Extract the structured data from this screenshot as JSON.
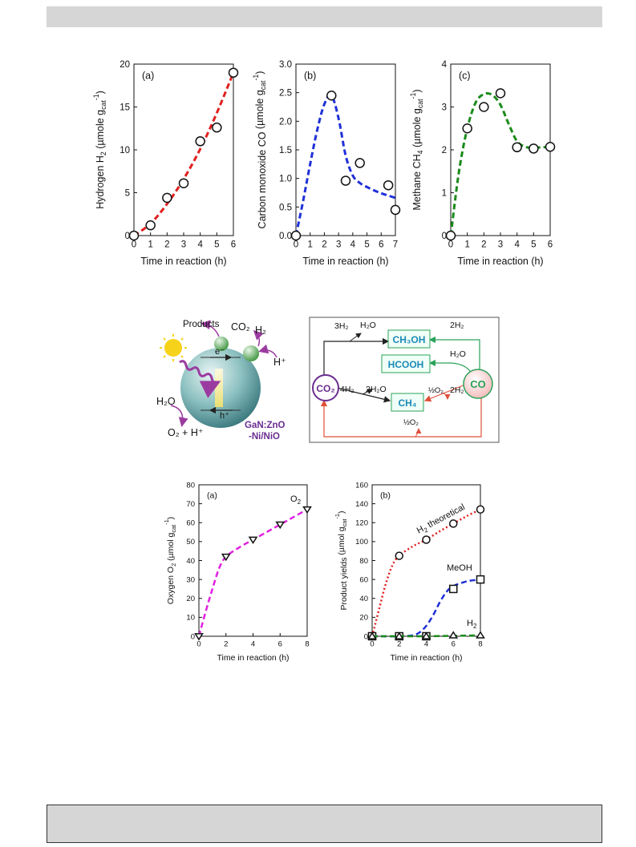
{
  "chart_data": [
    {
      "id": "top_a",
      "type": "scatter",
      "panel_label": "(a)",
      "ylabel": "Hydrogen H₂ (µmole g_cat⁻¹)",
      "ylabel_parts": {
        "main": "Hydrogen H",
        "sub1": "2",
        "mid": " (µmole g",
        "sub2": "cat",
        "sup": "-1",
        "end": ")"
      },
      "xlabel": "Time in reaction (h)",
      "xlim": [
        0,
        6
      ],
      "ylim": [
        0,
        20
      ],
      "xticks": [
        "0",
        "1",
        "2",
        "3",
        "4",
        "5",
        "6"
      ],
      "yticks": [
        "0",
        "5",
        "10",
        "15",
        "20"
      ],
      "points": {
        "x": [
          0,
          1,
          2,
          3,
          4,
          5,
          6
        ],
        "y": [
          0,
          1.2,
          4.4,
          6.1,
          11.0,
          12.6,
          19.0
        ]
      },
      "fit": {
        "x": [
          0,
          1,
          2,
          3,
          4,
          5,
          6
        ],
        "y": [
          0,
          1.4,
          3.7,
          6.6,
          10.1,
          14.3,
          19.0
        ]
      },
      "colors": {
        "fit": "#e02020"
      }
    },
    {
      "id": "top_b",
      "type": "scatter",
      "panel_label": "(b)",
      "ylabel": "Carbon monoxide CO (µmole g_cat⁻¹)",
      "ylabel_parts": {
        "main": "Carbon monoxide CO",
        "sub1": "",
        "mid": " (µmole g",
        "sub2": "cat",
        "sup": "-1",
        "end": ")"
      },
      "xlabel": "Time in reaction (h)",
      "xlim": [
        0,
        7
      ],
      "ylim": [
        0,
        3.0
      ],
      "xticks": [
        "0",
        "1",
        "2",
        "3",
        "4",
        "5",
        "6",
        "7"
      ],
      "yticks": [
        "0.0",
        "0.5",
        "1.0",
        "1.5",
        "2.0",
        "2.5",
        "3.0"
      ],
      "points": {
        "x": [
          0,
          2.5,
          3.5,
          4.5,
          6.5,
          7
        ],
        "y": [
          0,
          2.45,
          0.96,
          1.27,
          0.88,
          0.45
        ]
      },
      "fit": {
        "x": [
          0,
          0.5,
          1,
          1.5,
          2,
          2.5,
          3,
          3.5,
          4,
          4.5,
          5,
          5.5,
          6,
          6.5,
          7
        ],
        "y": [
          0,
          0.6,
          1.25,
          1.85,
          2.3,
          2.45,
          2.05,
          1.4,
          1.05,
          0.92,
          0.85,
          0.79,
          0.74,
          0.7,
          0.66
        ]
      },
      "colors": {
        "fit": "#2030d8"
      }
    },
    {
      "id": "top_c",
      "type": "scatter",
      "panel_label": "(c)",
      "ylabel": "Methane CH₄ (µmole g_cat⁻¹)",
      "ylabel_parts": {
        "main": "Methane CH",
        "sub1": "4",
        "mid": " (µmole g",
        "sub2": "cat",
        "sup": "-1",
        "end": ")"
      },
      "xlabel": "Time in reaction (h)",
      "xlim": [
        0,
        6
      ],
      "ylim": [
        0,
        4
      ],
      "xticks": [
        "0",
        "1",
        "2",
        "3",
        "4",
        "5",
        "6"
      ],
      "yticks": [
        "0",
        "1",
        "2",
        "3",
        "4"
      ],
      "points": {
        "x": [
          0,
          1,
          2,
          3,
          4,
          5,
          6
        ],
        "y": [
          0,
          2.5,
          3.0,
          3.32,
          2.06,
          2.03,
          2.07
        ]
      },
      "fit": {
        "x": [
          0,
          0.5,
          1,
          1.5,
          2,
          2.5,
          3,
          3.5,
          4,
          4.5,
          5,
          5.5,
          6
        ],
        "y": [
          0,
          1.5,
          2.5,
          3.1,
          3.3,
          3.28,
          3.05,
          2.6,
          2.2,
          2.07,
          2.05,
          2.06,
          2.07
        ]
      },
      "colors": {
        "fit": "#1a8a1a"
      }
    },
    {
      "id": "bot_a",
      "type": "scatter",
      "panel_label": "(a)",
      "ylabel": "Oxygen O₂ (µmol g_cat⁻¹)",
      "ylabel_parts": {
        "main": "Oxygen O",
        "sub1": "2",
        "mid": " (µmol g",
        "sub2": "cat",
        "sup": "-1",
        "end": ")"
      },
      "xlabel": "Time in reaction (h)",
      "xlim": [
        0,
        8
      ],
      "ylim": [
        0,
        80
      ],
      "xticks": [
        "0",
        "2",
        "4",
        "6",
        "8"
      ],
      "yticks": [
        "0",
        "10",
        "20",
        "30",
        "40",
        "50",
        "60",
        "70",
        "80"
      ],
      "series": [
        {
          "name": "O₂",
          "label_main": "O",
          "label_sub": "2",
          "marker": "triangle-down",
          "x": [
            0,
            2,
            4,
            6,
            8
          ],
          "y": [
            0,
            42,
            51,
            59,
            67
          ],
          "fit_x": [
            0,
            0.5,
            1,
            1.5,
            2,
            3,
            4,
            5,
            6,
            7,
            8
          ],
          "fit_y": [
            0,
            13,
            25,
            36,
            42,
            47,
            51,
            55,
            59,
            63,
            67
          ],
          "color": "#e020e0",
          "line": "dashed"
        }
      ]
    },
    {
      "id": "bot_b",
      "type": "scatter",
      "panel_label": "(b)",
      "ylabel": "Product yields (µmol g_cat⁻¹)",
      "ylabel_parts": {
        "main": "Product yields",
        "sub1": "",
        "mid": " (µmol g",
        "sub2": "cat",
        "sup": "-1",
        "end": ")"
      },
      "xlabel": "Time in reaction (h)",
      "xlim": [
        0,
        8
      ],
      "ylim": [
        0,
        160
      ],
      "xticks": [
        "0",
        "2",
        "4",
        "6",
        "8"
      ],
      "yticks": [
        "0",
        "20",
        "40",
        "60",
        "80",
        "100",
        "120",
        "140",
        "160"
      ],
      "series": [
        {
          "name": "H₂ theoretical",
          "label_main": "H",
          "label_sub": "2",
          "label_end": " theoretical",
          "marker": "circle",
          "x": [
            0,
            2,
            4,
            6,
            8
          ],
          "y": [
            0,
            85,
            102,
            119,
            134
          ],
          "fit_x": [
            0,
            0.5,
            1,
            1.5,
            2,
            3,
            4,
            5,
            6,
            7,
            8
          ],
          "fit_y": [
            0,
            28,
            55,
            75,
            85,
            95,
            102,
            111,
            119,
            127,
            134
          ],
          "color": "#e02020",
          "line": "dotted"
        },
        {
          "name": "MeOH",
          "label_main": "MeOH",
          "label_sub": "",
          "label_end": "",
          "marker": "square",
          "x": [
            0,
            2,
            4,
            6,
            8
          ],
          "y": [
            0,
            0,
            0,
            50,
            60
          ],
          "fit_x": [
            0,
            2,
            3,
            3.5,
            4,
            4.5,
            5,
            5.5,
            6,
            7,
            8
          ],
          "fit_y": [
            0,
            0,
            1,
            4,
            11,
            22,
            36,
            47,
            53,
            58,
            60
          ],
          "color": "#2030d8",
          "line": "dashed"
        },
        {
          "name": "H₂",
          "label_main": "H",
          "label_sub": "2",
          "label_end": "",
          "marker": "triangle-up",
          "x": [
            0,
            2,
            4,
            6,
            8
          ],
          "y": [
            0,
            0,
            0,
            1,
            1
          ],
          "fit_x": [
            0,
            2,
            4,
            6,
            8
          ],
          "fit_y": [
            0,
            0,
            0,
            0.5,
            1
          ],
          "color": "#1a8a1a",
          "line": "dashed"
        }
      ]
    }
  ],
  "diagram_left": {
    "labels": {
      "products": "Products",
      "co2": "CO₂",
      "h2": "H₂",
      "electron": "e⁻",
      "hplus_top": "H⁺",
      "hole": "h⁺",
      "h2o": "H₂O",
      "o2_hplus": "O₂ + H⁺",
      "catalyst_line1": "GaN:ZnO",
      "catalyst_line2": "-Ni/NiO"
    },
    "colors": {
      "catalyst_text": "#6a2c91",
      "arrow": "#9b3ba0",
      "sun": "#f6d21a"
    }
  },
  "diagram_right": {
    "labels": {
      "ch3oh": "CH₃OH",
      "hcooh": "HCOOH",
      "ch4": "CH₄",
      "co2": "CO₂",
      "co": "CO",
      "edge_3h2": "3H₂",
      "edge_h2o_top": "H₂O",
      "edge_2h2_top": "2H₂",
      "edge_h2o_mid": "H₂O",
      "edge_4h2": "4H₂",
      "edge_2h2o": "2H₂O",
      "edge_half_o2_right": "½O₂",
      "edge_2h2_bottom": "2H₂",
      "edge_half_o2_bottom": "½O₂"
    },
    "colors": {
      "box_text": "#1a8ab8",
      "green": "#2aa35a",
      "red": "#e0503a",
      "purple": "#6a2c91"
    }
  }
}
